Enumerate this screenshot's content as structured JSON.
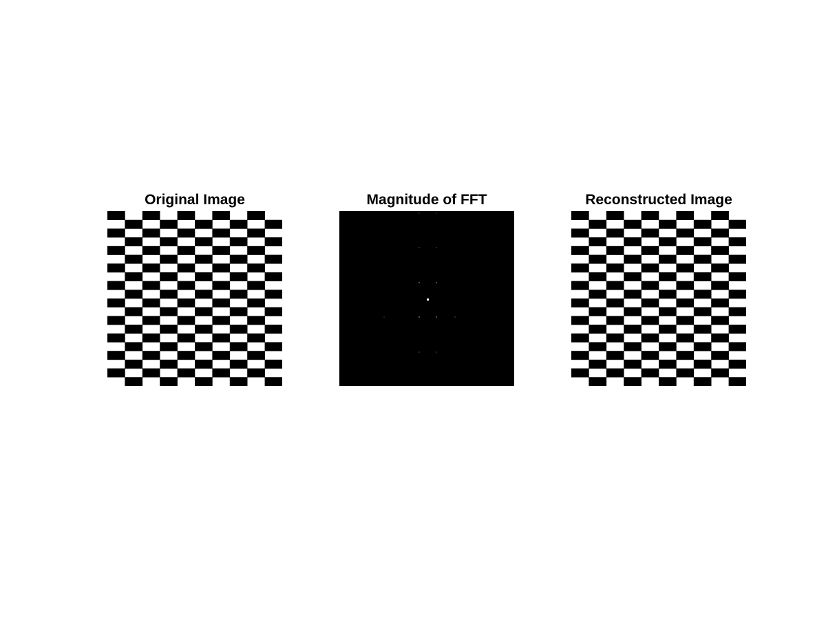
{
  "figure": {
    "panels": [
      {
        "title": "Original Image",
        "kind": "checkerboard",
        "pattern": {
          "rows": 20,
          "cols": 10,
          "dark": "#000000",
          "light": "#ffffff"
        }
      },
      {
        "title": "Magnitude of FFT",
        "kind": "fft-spectrum",
        "background": "#000000",
        "peak_color": "#ffffff"
      },
      {
        "title": "Reconstructed Image",
        "kind": "checkerboard",
        "pattern": {
          "rows": 20,
          "cols": 10,
          "dark": "#000000",
          "light": "#ffffff"
        }
      }
    ]
  }
}
